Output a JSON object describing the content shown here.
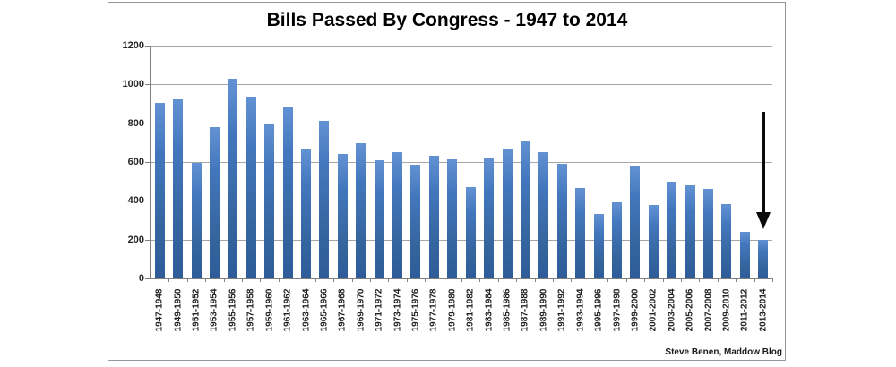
{
  "header": {
    "title": "Bills Passed By Congress - 1947 to 2014"
  },
  "footer": {
    "attribution": "Steve Benen, Maddow Blog"
  },
  "chart_data": {
    "type": "bar",
    "title": "Bills Passed By Congress - 1947 to 2014",
    "categories": [
      "1947-1948",
      "1949-1950",
      "1951-1952",
      "1953-1954",
      "1955-1956",
      "1957-1958",
      "1959-1960",
      "1961-1962",
      "1963-1964",
      "1965-1966",
      "1967-1968",
      "1969-1970",
      "1971-1972",
      "1973-1974",
      "1975-1976",
      "1977-1978",
      "1979-1980",
      "1981-1982",
      "1983-1984",
      "1985-1986",
      "1987-1988",
      "1989-1990",
      "1991-1992",
      "1993-1994",
      "1995-1996",
      "1997-1998",
      "1999-2000",
      "2001-2002",
      "2003-2004",
      "2005-2006",
      "2007-2008",
      "2009-2010",
      "2011-2012",
      "2013-2014"
    ],
    "values": [
      906,
      921,
      594,
      781,
      1028,
      936,
      800,
      885,
      666,
      810,
      640,
      695,
      607,
      649,
      588,
      633,
      613,
      473,
      623,
      664,
      713,
      650,
      590,
      465,
      333,
      394,
      580,
      377,
      498,
      482,
      460,
      383,
      238,
      200
    ],
    "xlabel": "",
    "ylabel": "",
    "ylim": [
      0,
      1200
    ],
    "yticks": [
      0,
      200,
      400,
      600,
      800,
      1000,
      1200
    ],
    "grid": true,
    "legend": false,
    "annotation": {
      "type": "arrow-down",
      "target_category": "2013-2014"
    }
  },
  "colors": {
    "bar_top": "#6392d3",
    "bar_main": "#3a6cb2",
    "bar_bottom": "#2d5c99",
    "gridline": "#a6a6a6",
    "axis": "#7f7f7f",
    "panel_border": "#969696",
    "arrow": "#0b0b0b",
    "text": "#1f1f1f",
    "background": "#ffffff"
  }
}
